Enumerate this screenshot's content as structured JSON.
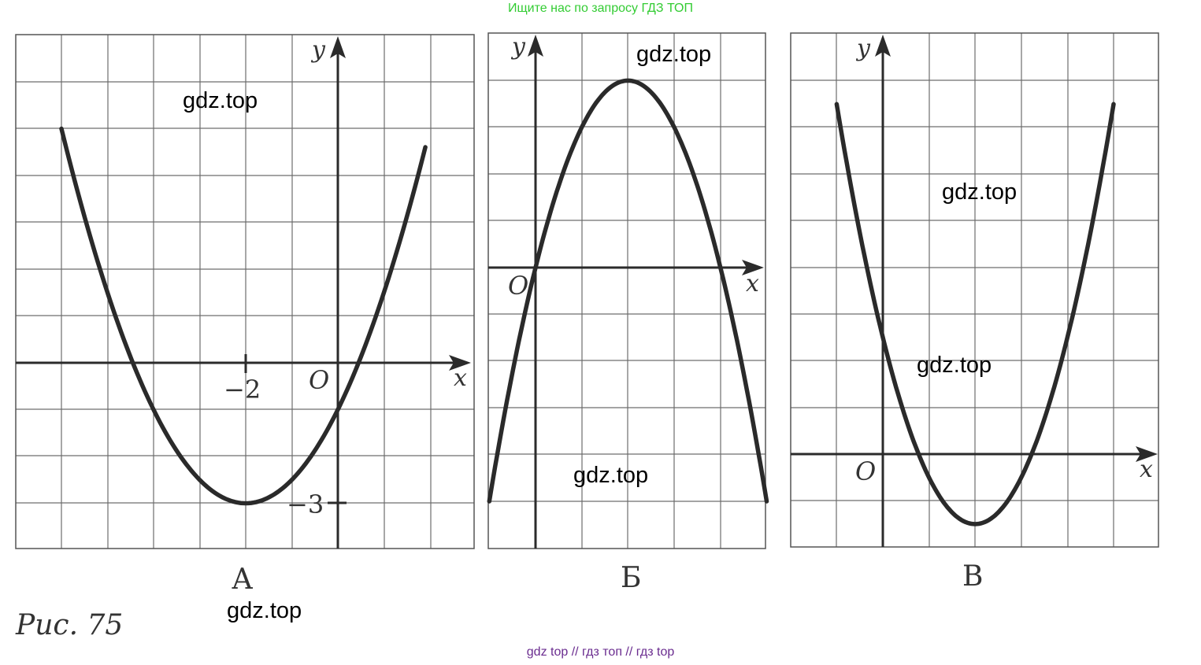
{
  "header": {
    "banner": "Ищите нас по запросу ГДЗ ТОП"
  },
  "footer": {
    "links": "gdz top  //  гдз топ  //  гдз top"
  },
  "figure": {
    "caption": "Рис. 75"
  },
  "watermark": "gdz.top",
  "graphs": [
    {
      "label": "А",
      "axis_x": "x",
      "axis_y": "y",
      "origin": "O",
      "x_tick": "−2",
      "y_tick": "−3",
      "vertex": [
        -2,
        -3
      ],
      "a": 0.5,
      "x_range": [
        -6,
        3
      ],
      "y_range": [
        -4,
        5
      ]
    },
    {
      "label": "Б",
      "axis_x": "x",
      "axis_y": "y",
      "origin": "O",
      "vertex": [
        2,
        4
      ],
      "a": -1,
      "x_range": [
        -1,
        5
      ],
      "y_range": [
        -6,
        5
      ]
    },
    {
      "label": "В",
      "axis_x": "x",
      "axis_y": "y",
      "origin": "O",
      "vertex": [
        2,
        -1.5
      ],
      "a": 1,
      "x_range": [
        -1,
        6
      ],
      "y_range": [
        -2,
        9
      ]
    }
  ]
}
